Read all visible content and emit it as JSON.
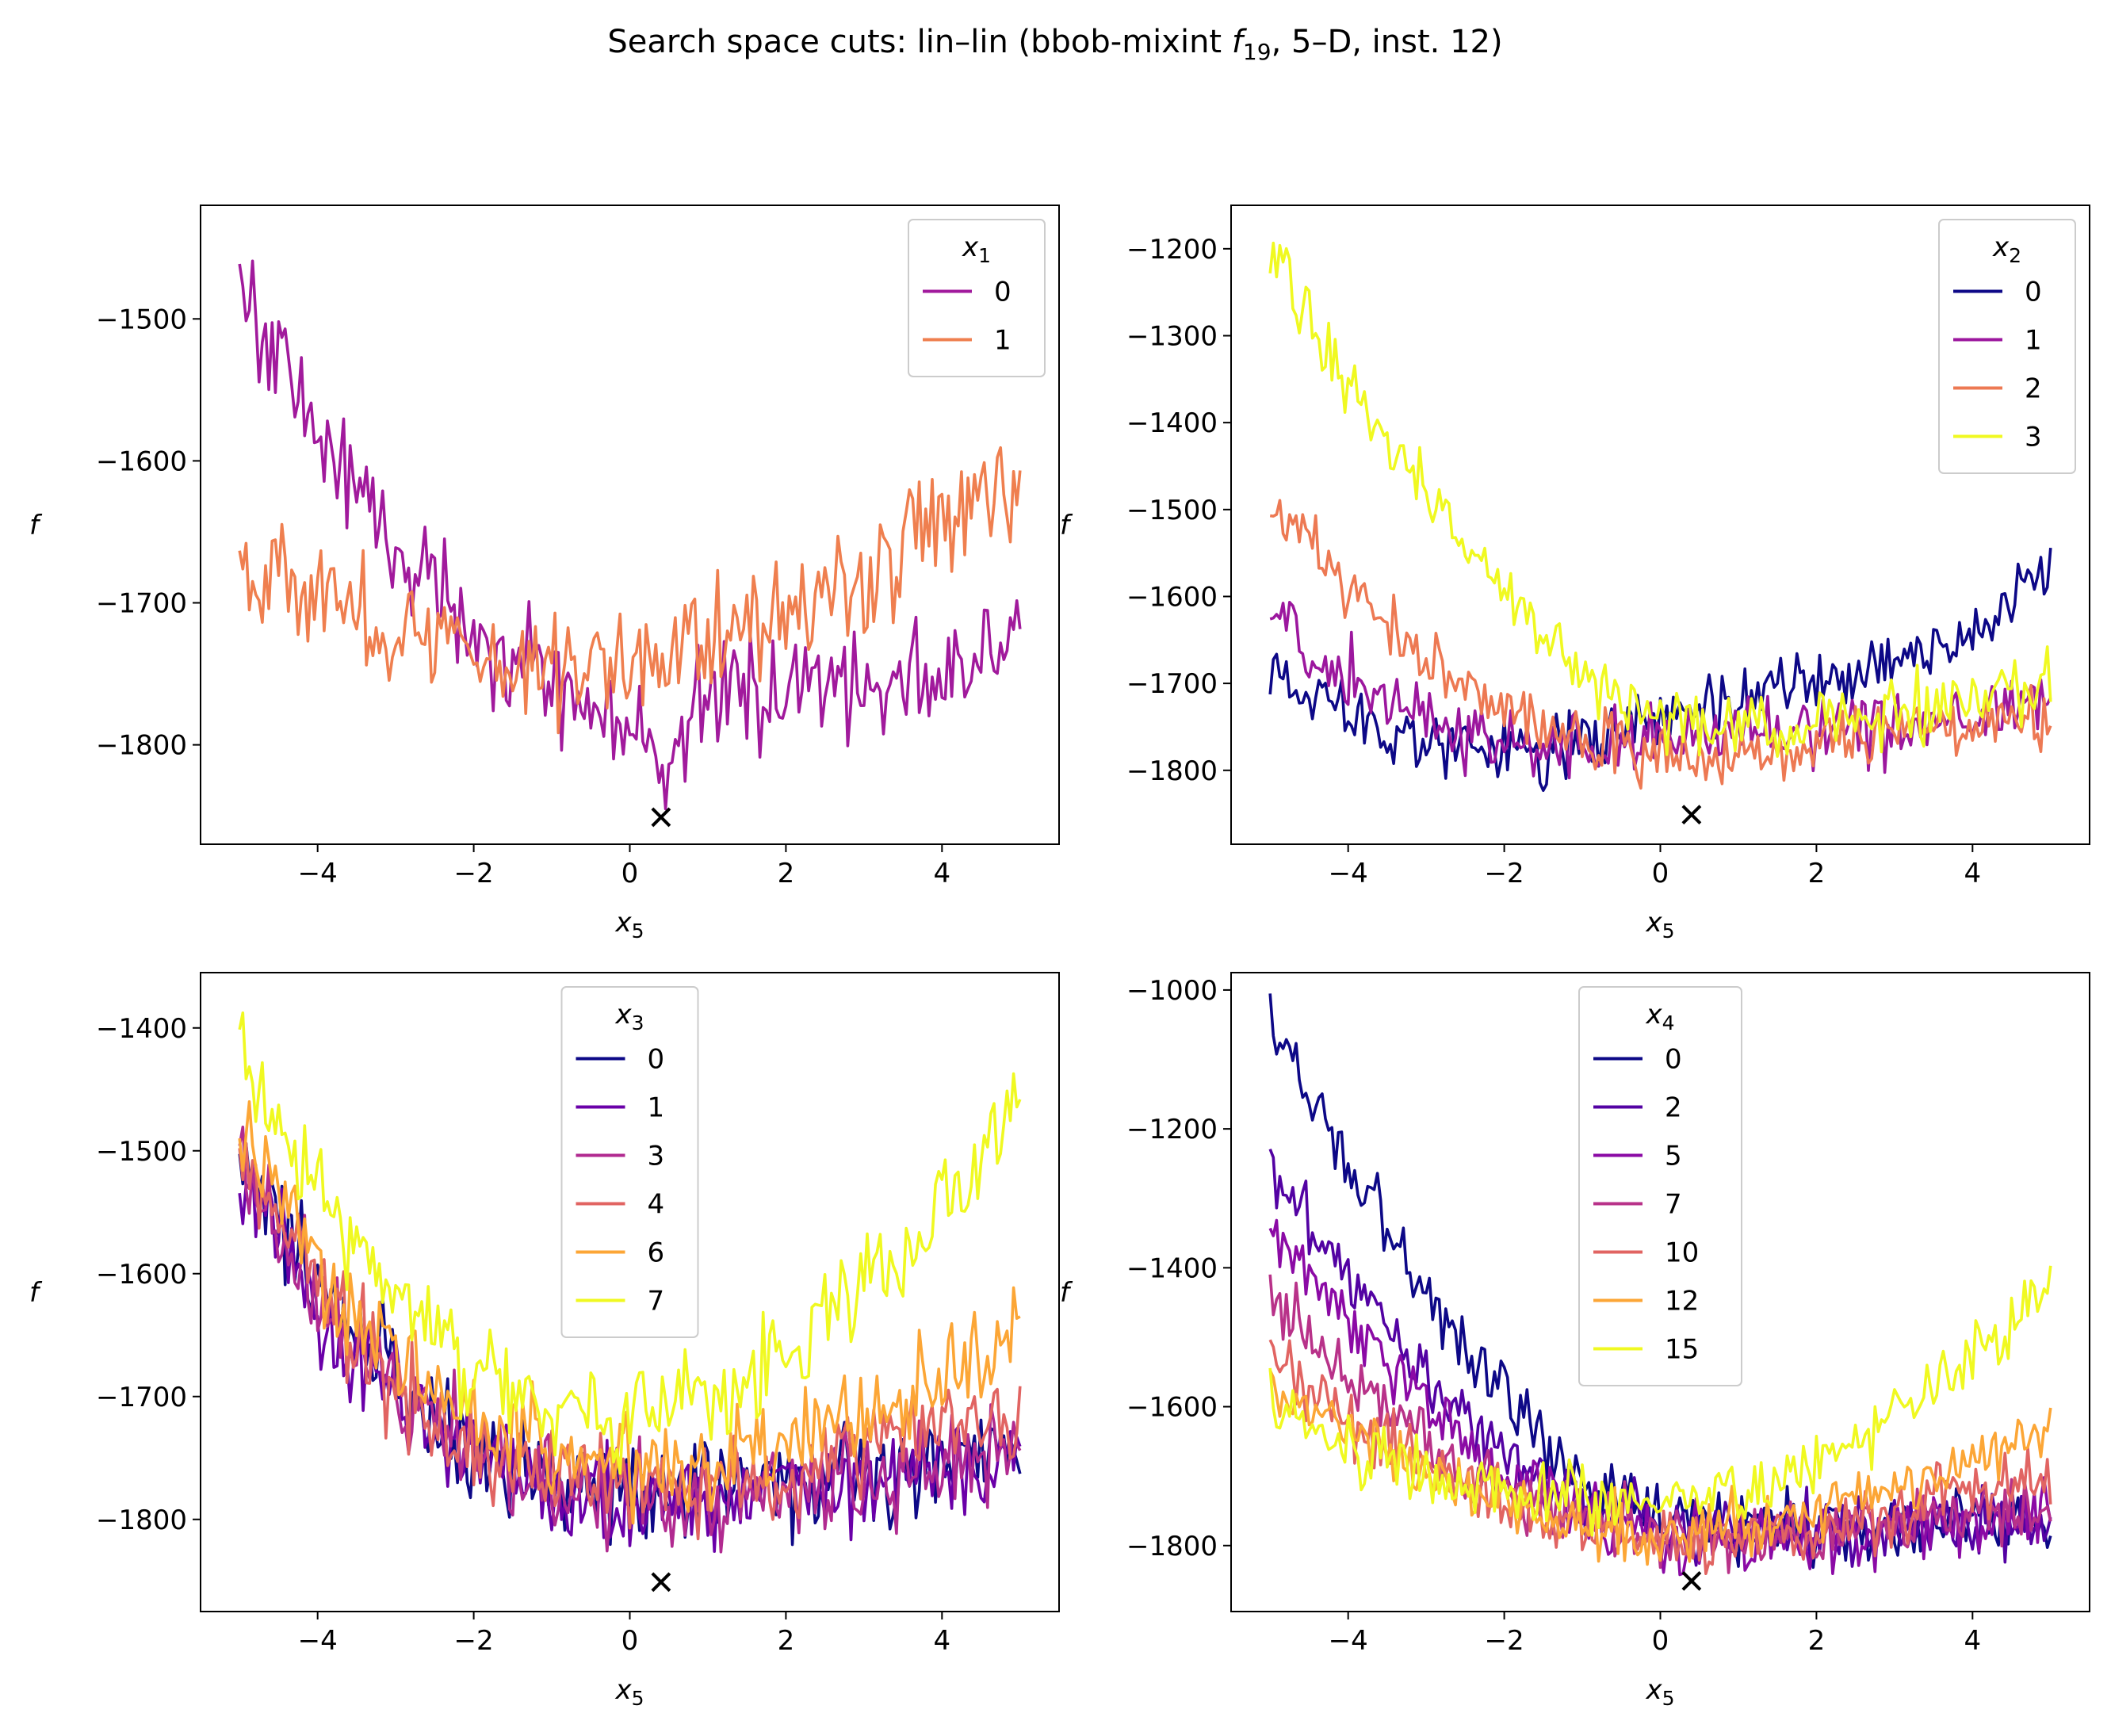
{
  "title": "Search space cuts: lin–lin (bbob-mixint ",
  "title_fn": "f",
  "title_fn_sub": "19",
  "title_suffix": ", 5–D, inst. 12)",
  "chart_data": [
    {
      "type": "line",
      "xlabel": "x",
      "xlabel_sub": "5",
      "ylabel": "f",
      "xlim": [
        -5.5,
        5.5
      ],
      "ylim": [
        -1870,
        -1420
      ],
      "xticks": [
        -4,
        -2,
        0,
        2,
        4
      ],
      "yticks": [
        -1800,
        -1700,
        -1600,
        -1500
      ],
      "xticklabels": [
        "−4",
        "−2",
        "0",
        "2",
        "4"
      ],
      "yticklabels": [
        "−1800",
        "−1700",
        "−1600",
        "−1500"
      ],
      "legend": {
        "title": "x",
        "title_sub": "1",
        "placement": "upper right"
      },
      "minimum_marker": {
        "x": 0.4,
        "y": -1851
      },
      "noise": 30,
      "series": [
        {
          "name": "0",
          "color": "#a11a9c",
          "x": [
            -5,
            -4,
            -3,
            -2,
            -1,
            0,
            0.4,
            1,
            2,
            3,
            4,
            5
          ],
          "y": [
            -1475,
            -1580,
            -1660,
            -1715,
            -1760,
            -1790,
            -1815,
            -1765,
            -1760,
            -1755,
            -1750,
            -1735
          ]
        },
        {
          "name": "1",
          "color": "#ef7f4f",
          "x": [
            -5,
            -4,
            -3,
            -2,
            -1,
            0,
            1,
            2,
            3,
            4,
            5
          ],
          "y": [
            -1665,
            -1695,
            -1720,
            -1735,
            -1745,
            -1740,
            -1725,
            -1700,
            -1680,
            -1650,
            -1610
          ]
        }
      ]
    },
    {
      "type": "line",
      "xlabel": "x",
      "xlabel_sub": "5",
      "ylabel": "f",
      "xlim": [
        -5.5,
        5.5
      ],
      "ylim": [
        -1885,
        -1150
      ],
      "xticks": [
        -4,
        -2,
        0,
        2,
        4
      ],
      "yticks": [
        -1800,
        -1700,
        -1600,
        -1500,
        -1400,
        -1300,
        -1200
      ],
      "xticklabels": [
        "−4",
        "−2",
        "0",
        "2",
        "4"
      ],
      "yticklabels": [
        "−1800",
        "−1700",
        "−1600",
        "−1500",
        "−1400",
        "−1300",
        "−1200"
      ],
      "legend": {
        "title": "x",
        "title_sub": "2",
        "placement": "upper right"
      },
      "minimum_marker": {
        "x": 0.4,
        "y": -1851
      },
      "noise": 28,
      "series": [
        {
          "name": "0",
          "color": "#0d0887",
          "x": [
            -5,
            -4,
            -3,
            -2,
            -1,
            0,
            1,
            2,
            3,
            4,
            5
          ],
          "y": [
            -1680,
            -1730,
            -1770,
            -1780,
            -1770,
            -1745,
            -1720,
            -1700,
            -1680,
            -1640,
            -1560
          ]
        },
        {
          "name": "1",
          "color": "#9c179e",
          "x": [
            -5,
            -4,
            -3,
            -2,
            -1,
            0,
            1,
            2,
            3,
            4,
            5
          ],
          "y": [
            -1620,
            -1690,
            -1740,
            -1770,
            -1775,
            -1765,
            -1760,
            -1755,
            -1750,
            -1740,
            -1720
          ]
        },
        {
          "name": "2",
          "color": "#ed7953",
          "x": [
            -5,
            -4,
            -3,
            -2,
            -1,
            0,
            1,
            2,
            3,
            4,
            5
          ],
          "y": [
            -1490,
            -1590,
            -1680,
            -1730,
            -1765,
            -1790,
            -1780,
            -1770,
            -1760,
            -1750,
            -1740
          ]
        },
        {
          "name": "3",
          "color": "#f0f921",
          "x": [
            -5,
            -4,
            -3,
            -2,
            -1,
            0,
            1,
            2,
            3,
            4,
            5
          ],
          "y": [
            -1200,
            -1350,
            -1480,
            -1600,
            -1690,
            -1735,
            -1750,
            -1745,
            -1735,
            -1720,
            -1700
          ]
        }
      ]
    },
    {
      "type": "line",
      "xlabel": "x",
      "xlabel_sub": "5",
      "ylabel": "f",
      "xlim": [
        -5.5,
        5.5
      ],
      "ylim": [
        -1875,
        -1355
      ],
      "xticks": [
        -4,
        -2,
        0,
        2,
        4
      ],
      "yticks": [
        -1800,
        -1700,
        -1600,
        -1500,
        -1400
      ],
      "xticklabels": [
        "−4",
        "−2",
        "0",
        "2",
        "4"
      ],
      "yticklabels": [
        "−1800",
        "−1700",
        "−1600",
        "−1500",
        "−1400"
      ],
      "legend": {
        "title": "x",
        "title_sub": "3",
        "placement": "upper center"
      },
      "minimum_marker": {
        "x": 0.4,
        "y": -1851
      },
      "noise": 30,
      "series": [
        {
          "name": "0",
          "color": "#0d0887",
          "x": [
            -5,
            -4,
            -3,
            -2,
            -1,
            0,
            1,
            2,
            3,
            4,
            5
          ],
          "y": [
            -1500,
            -1610,
            -1690,
            -1740,
            -1765,
            -1775,
            -1775,
            -1770,
            -1760,
            -1750,
            -1740
          ]
        },
        {
          "name": "1",
          "color": "#6a00a8",
          "x": [
            -5,
            -4,
            -3,
            -2,
            -1,
            0,
            1,
            2,
            3,
            4,
            5
          ],
          "y": [
            -1520,
            -1630,
            -1700,
            -1750,
            -1775,
            -1785,
            -1785,
            -1780,
            -1770,
            -1760,
            -1745
          ]
        },
        {
          "name": "3",
          "color": "#b12a90",
          "x": [
            -5,
            -4,
            -3,
            -2,
            -1,
            0,
            1,
            2,
            3,
            4,
            5
          ],
          "y": [
            -1510,
            -1620,
            -1695,
            -1745,
            -1770,
            -1780,
            -1780,
            -1775,
            -1765,
            -1750,
            -1735
          ]
        },
        {
          "name": "4",
          "color": "#e16462",
          "x": [
            -5,
            -4,
            -3,
            -2,
            -1,
            0,
            1,
            2,
            3,
            4,
            5
          ],
          "y": [
            -1500,
            -1610,
            -1690,
            -1740,
            -1765,
            -1775,
            -1770,
            -1760,
            -1745,
            -1730,
            -1710
          ]
        },
        {
          "name": "6",
          "color": "#fca636",
          "x": [
            -5,
            -4,
            -3,
            -2,
            -1,
            0,
            1,
            2,
            3,
            4,
            5
          ],
          "y": [
            -1480,
            -1590,
            -1670,
            -1725,
            -1750,
            -1760,
            -1755,
            -1740,
            -1720,
            -1690,
            -1640
          ]
        },
        {
          "name": "7",
          "color": "#f0f921",
          "x": [
            -5,
            -4,
            -3,
            -2,
            -1,
            0,
            1,
            2,
            3,
            4,
            5
          ],
          "y": [
            -1420,
            -1540,
            -1620,
            -1680,
            -1705,
            -1710,
            -1695,
            -1660,
            -1610,
            -1550,
            -1450
          ]
        }
      ]
    },
    {
      "type": "line",
      "xlabel": "x",
      "xlabel_sub": "5",
      "ylabel": "f",
      "xlim": [
        -5.5,
        5.5
      ],
      "ylim": [
        -1895,
        -975
      ],
      "xticks": [
        -4,
        -2,
        0,
        2,
        4
      ],
      "yticks": [
        -1800,
        -1600,
        -1400,
        -1200,
        -1000
      ],
      "xticklabels": [
        "−4",
        "−2",
        "0",
        "2",
        "4"
      ],
      "yticklabels": [
        "−1800",
        "−1600",
        "−1400",
        "−1200",
        "−1000"
      ],
      "legend": {
        "title": "x",
        "title_sub": "4",
        "placement": "upper center"
      },
      "minimum_marker": {
        "x": 0.4,
        "y": -1851
      },
      "noise": 35,
      "series": [
        {
          "name": "0",
          "color": "#0d0887",
          "x": [
            -5,
            -4,
            -3,
            -2,
            -1,
            0,
            1,
            2,
            3,
            4,
            5
          ],
          "y": [
            -1040,
            -1260,
            -1440,
            -1590,
            -1700,
            -1750,
            -1770,
            -1775,
            -1770,
            -1765,
            -1760
          ]
        },
        {
          "name": "2",
          "color": "#5302a3",
          "x": [
            -5,
            -4,
            -3,
            -2,
            -1,
            0,
            1,
            2,
            3,
            4,
            5
          ],
          "y": [
            -1250,
            -1420,
            -1560,
            -1660,
            -1730,
            -1770,
            -1780,
            -1780,
            -1775,
            -1770,
            -1765
          ]
        },
        {
          "name": "5",
          "color": "#8b0aa5",
          "x": [
            -5,
            -4,
            -3,
            -2,
            -1,
            0,
            1,
            2,
            3,
            4,
            5
          ],
          "y": [
            -1350,
            -1480,
            -1600,
            -1690,
            -1750,
            -1780,
            -1790,
            -1785,
            -1775,
            -1765,
            -1755
          ]
        },
        {
          "name": "7",
          "color": "#b83289",
          "x": [
            -5,
            -4,
            -3,
            -2,
            -1,
            0,
            1,
            2,
            3,
            4,
            5
          ],
          "y": [
            -1450,
            -1560,
            -1650,
            -1720,
            -1765,
            -1785,
            -1790,
            -1780,
            -1770,
            -1755,
            -1740
          ]
        },
        {
          "name": "10",
          "color": "#e16462",
          "x": [
            -5,
            -4,
            -3,
            -2,
            -1,
            0,
            1,
            2,
            3,
            4,
            5
          ],
          "y": [
            -1530,
            -1620,
            -1690,
            -1740,
            -1775,
            -1790,
            -1785,
            -1770,
            -1750,
            -1725,
            -1700
          ]
        },
        {
          "name": "12",
          "color": "#fca636",
          "x": [
            -5,
            -4,
            -3,
            -2,
            -1,
            0,
            1,
            2,
            3,
            4,
            5
          ],
          "y": [
            -1560,
            -1640,
            -1700,
            -1745,
            -1770,
            -1780,
            -1770,
            -1750,
            -1720,
            -1680,
            -1640
          ]
        },
        {
          "name": "15",
          "color": "#f0f921",
          "x": [
            -5,
            -4,
            -3,
            -2,
            -1,
            0,
            1,
            2,
            3,
            4,
            5
          ],
          "y": [
            -1590,
            -1660,
            -1700,
            -1725,
            -1735,
            -1735,
            -1720,
            -1680,
            -1620,
            -1540,
            -1420
          ]
        }
      ]
    }
  ]
}
